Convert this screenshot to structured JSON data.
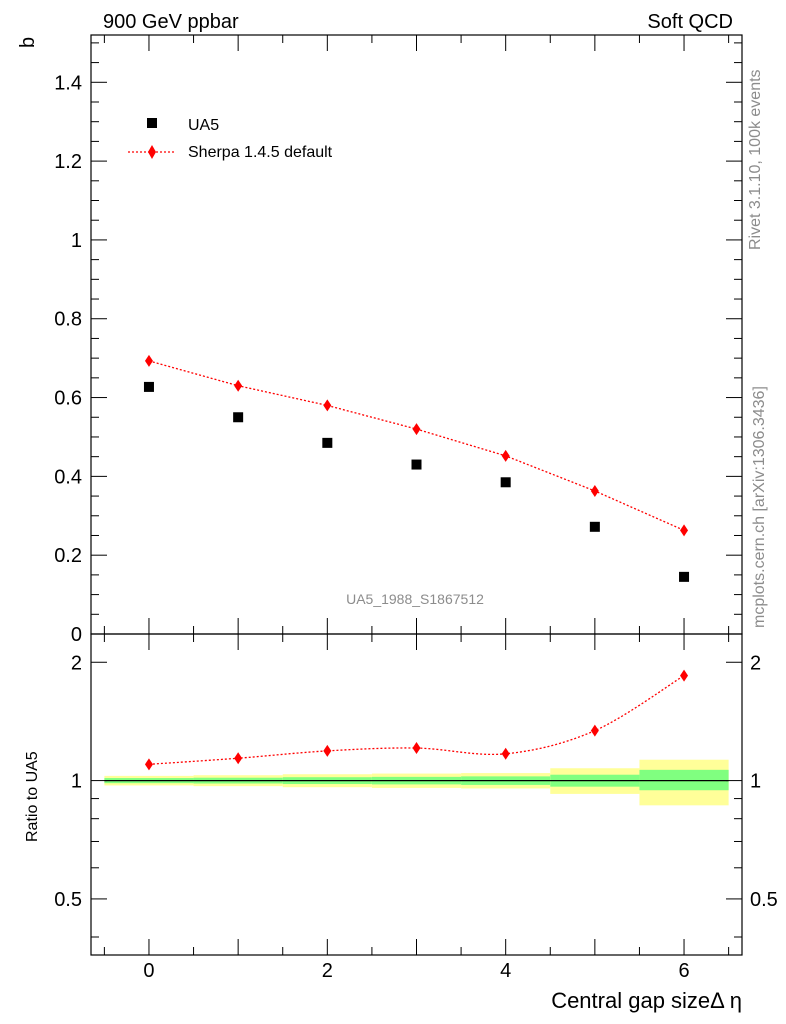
{
  "header": {
    "left": "900 GeV ppbar",
    "right": "Soft QCD"
  },
  "side_labels": {
    "rivet": "Rivet 3.1.10,  100k events",
    "mcplots": "mcplots.cern.ch [arXiv:1306.3436]"
  },
  "analysis_id": "UA5_1988_S1867512",
  "chart_data": [
    {
      "type": "scatter",
      "panel": "main",
      "ylabel": "b",
      "xlabel": "",
      "xlim": [
        -0.65,
        6.65
      ],
      "ylim": [
        0,
        1.52
      ],
      "y_ticks": [
        0,
        0.2,
        0.4,
        0.6,
        0.8,
        1,
        1.2,
        1.4
      ],
      "y_tick_labels": [
        "0",
        "0.2",
        "0.4",
        "0.6",
        "0.8",
        "1",
        "1.2",
        "1.4"
      ],
      "legend_position": "top-left",
      "series": [
        {
          "name": "UA5",
          "color": "#000000",
          "marker": "square",
          "x": [
            0,
            1,
            2,
            3,
            4,
            5,
            6
          ],
          "y": [
            0.627,
            0.55,
            0.485,
            0.43,
            0.385,
            0.272,
            0.145
          ]
        },
        {
          "name": "Sherpa 1.4.5 default",
          "color": "#ff0000",
          "marker": "diamond",
          "line": "dotted",
          "x": [
            0,
            1,
            2,
            3,
            4,
            5,
            6
          ],
          "y": [
            0.693,
            0.63,
            0.58,
            0.52,
            0.452,
            0.363,
            0.263
          ]
        }
      ]
    },
    {
      "type": "line",
      "panel": "ratio",
      "ylabel": "Ratio to UA5",
      "xlabel": "Central gap sizeΔ η",
      "xlim": [
        -0.65,
        6.65
      ],
      "ylim": [
        0.36,
        2.36
      ],
      "y_scale": "log",
      "y_ticks": [
        0.5,
        1,
        2
      ],
      "y_tick_labels": [
        "0.5",
        "1",
        "2"
      ],
      "x_ticks": [
        0,
        2,
        4,
        6
      ],
      "x_tick_labels": [
        "0",
        "2",
        "4",
        "6"
      ],
      "reference_line": 1,
      "uncertainty_bands": {
        "x_edges": [
          -0.5,
          0.5,
          1.5,
          2.5,
          3.5,
          4.5,
          5.5,
          6.5
        ],
        "inner_color": "#80ff80",
        "outer_color": "#ffff99",
        "inner_low": [
          0.985,
          0.983,
          0.98,
          0.978,
          0.975,
          0.965,
          0.945
        ],
        "inner_high": [
          1.015,
          1.017,
          1.02,
          1.022,
          1.025,
          1.035,
          1.065
        ],
        "outer_low": [
          0.972,
          0.968,
          0.962,
          0.958,
          0.955,
          0.925,
          0.865
        ],
        "outer_high": [
          1.028,
          1.032,
          1.038,
          1.042,
          1.045,
          1.075,
          1.13
        ]
      },
      "series": [
        {
          "name": "Sherpa 1.4.5 default",
          "color": "#ff0000",
          "marker": "diamond",
          "line": "dotted",
          "x": [
            0,
            1,
            2,
            3,
            4,
            5,
            6
          ],
          "y": [
            1.1,
            1.14,
            1.19,
            1.21,
            1.17,
            1.34,
            1.85
          ]
        }
      ]
    }
  ]
}
